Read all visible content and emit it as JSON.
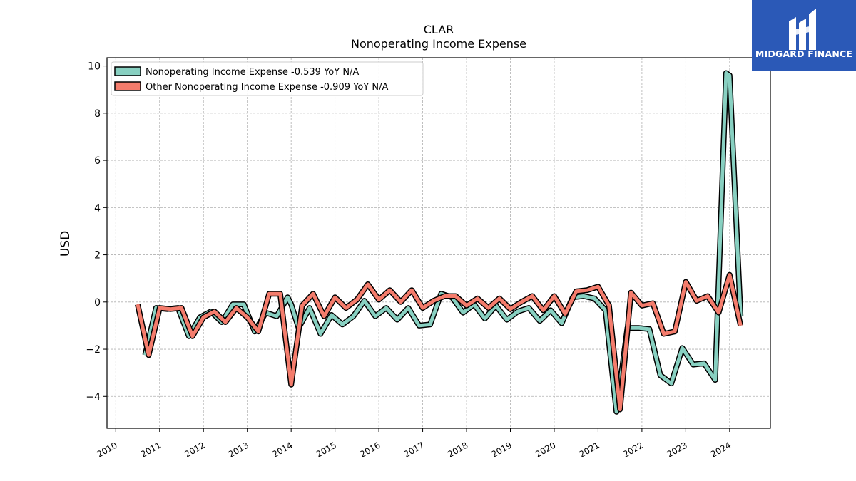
{
  "brand": {
    "name": "MIDGARD FINANCE",
    "color": "#2b59b7"
  },
  "chart_data": {
    "type": "line",
    "title": "CLAR",
    "subtitle": "Nonoperating Income Expense",
    "ylabel": "USD",
    "xlabel": "",
    "ylim": [
      -5.35,
      10.35
    ],
    "yticks": [
      -4,
      -2,
      0,
      2,
      4,
      6,
      8,
      10
    ],
    "ytick_labels": [
      "−4",
      "−2",
      "0",
      "2",
      "4",
      "6",
      "8",
      "10"
    ],
    "xlim": [
      2009.8,
      2024.93
    ],
    "xticks": [
      2010,
      2011,
      2012,
      2013,
      2014,
      2015,
      2016,
      2017,
      2018,
      2019,
      2020,
      2021,
      2022,
      2023,
      2024
    ],
    "grid": true,
    "legend_position": "upper-left",
    "series": [
      {
        "name": "Nonoperating Income Expense  -0.539 YoY N/A",
        "color": "#88d0c1",
        "x": [
          2010.67,
          2010.92,
          2011.17,
          2011.42,
          2011.67,
          2011.92,
          2012.17,
          2012.42,
          2012.67,
          2012.92,
          2013.17,
          2013.42,
          2013.67,
          2013.92,
          2014.0,
          2014.17,
          2014.42,
          2014.67,
          2014.92,
          2015.17,
          2015.42,
          2015.67,
          2015.92,
          2016.17,
          2016.42,
          2016.67,
          2016.92,
          2017.17,
          2017.42,
          2017.67,
          2017.92,
          2018.17,
          2018.42,
          2018.67,
          2018.92,
          2019.17,
          2019.42,
          2019.67,
          2019.92,
          2020.17,
          2020.42,
          2020.67,
          2020.92,
          2021.17,
          2021.42,
          2021.67,
          2021.92,
          2022.17,
          2022.42,
          2022.67,
          2022.92,
          2023.17,
          2023.42,
          2023.67,
          2023.92,
          2024.0,
          2024.25
        ],
        "y": [
          -2.25,
          -0.25,
          -0.3,
          -0.25,
          -1.45,
          -0.65,
          -0.4,
          -0.85,
          -0.1,
          -0.1,
          -1.25,
          -0.45,
          -0.6,
          0.2,
          -0.1,
          -1.1,
          -0.25,
          -1.35,
          -0.55,
          -0.95,
          -0.6,
          0.05,
          -0.6,
          -0.25,
          -0.75,
          -0.25,
          -1.0,
          -0.95,
          0.35,
          0.2,
          -0.45,
          -0.1,
          -0.7,
          -0.15,
          -0.75,
          -0.4,
          -0.25,
          -0.8,
          -0.35,
          -0.9,
          0.2,
          0.25,
          0.15,
          -0.35,
          -4.65,
          -1.1,
          -1.1,
          -1.15,
          -3.1,
          -3.45,
          -1.95,
          -2.65,
          -2.6,
          -3.3,
          9.7,
          9.6,
          -0.6
        ]
      },
      {
        "name": "Other Nonoperating Income Expense  -0.909 YoY N/A",
        "color": "#f47c6c",
        "x": [
          2010.5,
          2010.75,
          2011.0,
          2011.25,
          2011.5,
          2011.75,
          2012.0,
          2012.25,
          2012.5,
          2012.75,
          2013.0,
          2013.25,
          2013.5,
          2013.75,
          2014.0,
          2014.25,
          2014.5,
          2014.75,
          2015.0,
          2015.25,
          2015.5,
          2015.75,
          2016.0,
          2016.25,
          2016.5,
          2016.75,
          2017.0,
          2017.25,
          2017.5,
          2017.75,
          2018.0,
          2018.25,
          2018.5,
          2018.75,
          2019.0,
          2019.25,
          2019.5,
          2019.75,
          2020.0,
          2020.25,
          2020.5,
          2020.75,
          2021.0,
          2021.25,
          2021.5,
          2021.75,
          2022.0,
          2022.25,
          2022.5,
          2022.75,
          2023.0,
          2023.25,
          2023.5,
          2023.75,
          2024.0,
          2024.25
        ],
        "y": [
          -0.1,
          -2.25,
          -0.25,
          -0.3,
          -0.25,
          -1.45,
          -0.65,
          -0.4,
          -0.85,
          -0.25,
          -0.65,
          -1.25,
          0.35,
          0.35,
          -3.5,
          -0.15,
          0.35,
          -0.6,
          0.2,
          -0.25,
          0.1,
          0.75,
          0.1,
          0.5,
          0.0,
          0.5,
          -0.25,
          0.05,
          0.25,
          0.25,
          -0.15,
          0.15,
          -0.25,
          0.15,
          -0.3,
          0.0,
          0.25,
          -0.35,
          0.25,
          -0.5,
          0.45,
          0.5,
          0.65,
          -0.15,
          -4.55,
          0.4,
          -0.15,
          -0.05,
          -1.35,
          -1.25,
          0.85,
          0.05,
          0.25,
          -0.45,
          1.15,
          -1.0
        ]
      }
    ]
  }
}
